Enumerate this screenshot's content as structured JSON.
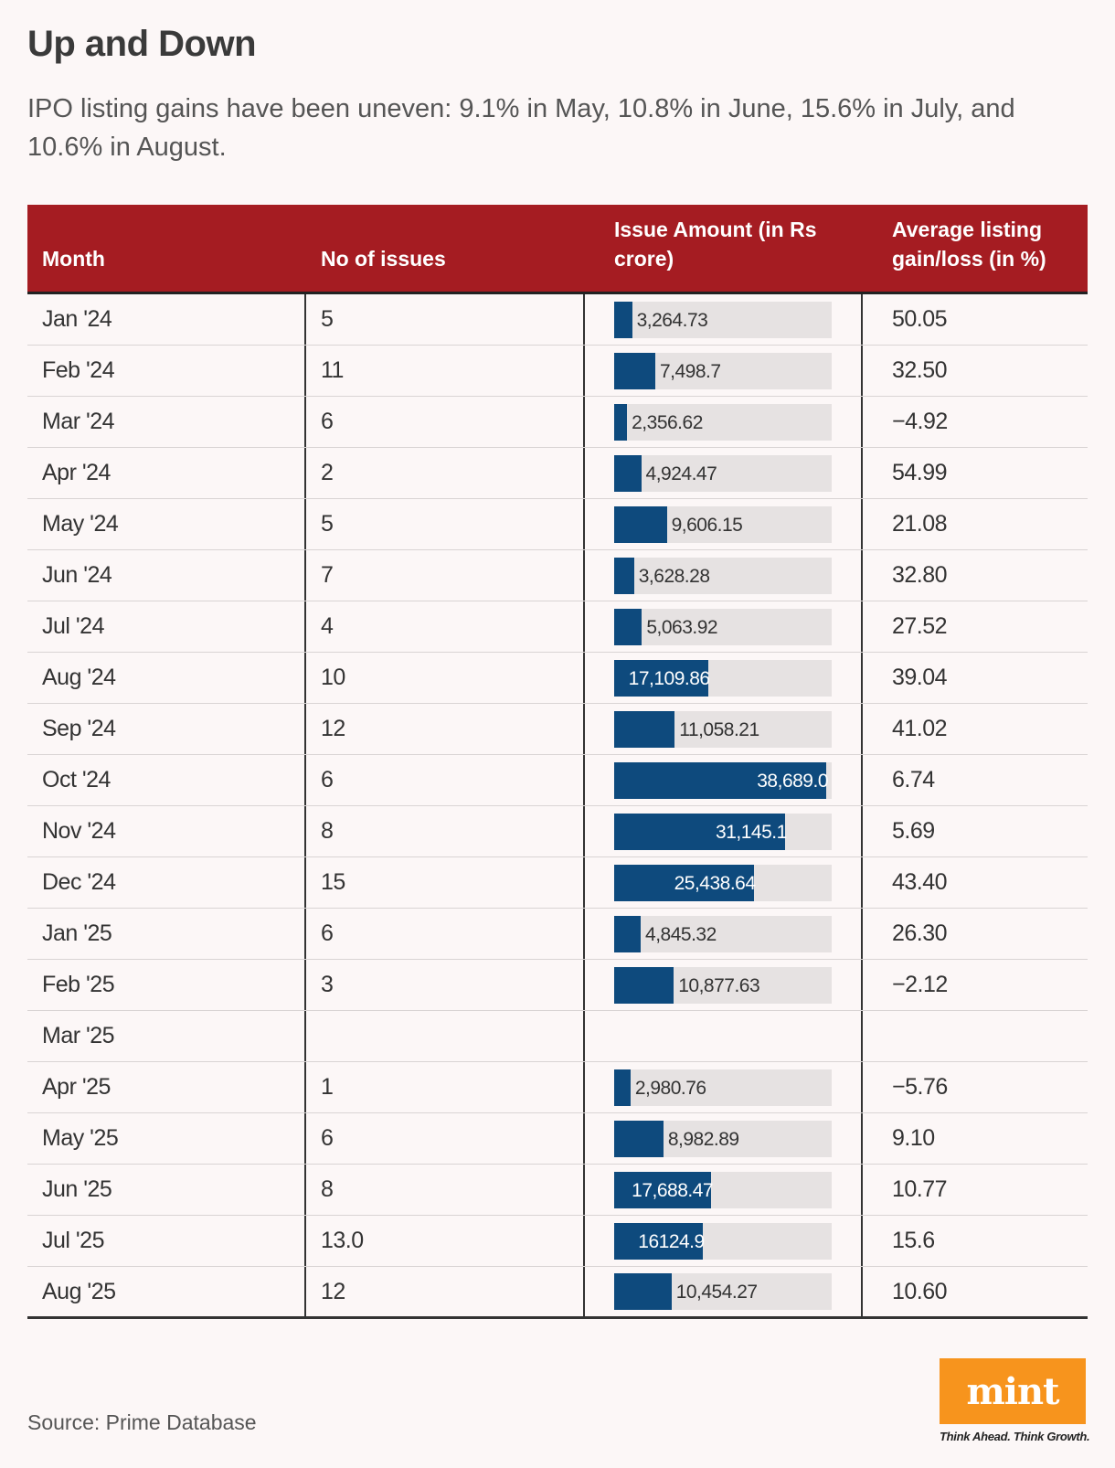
{
  "title": "Up and Down",
  "subtitle": "IPO listing gains have been uneven: 9.1% in May, 10.8% in June, 15.6% in July, and 10.6% in August.",
  "source": "Source: Prime Database",
  "logo": {
    "name": "mint",
    "tagline": "Think Ahead. Think Growth."
  },
  "colors": {
    "header_bg": "#a51c22",
    "bar": "#0e4a7d",
    "track": "#e6e2e2",
    "logo_bg": "#f7941d"
  },
  "chart_data": {
    "type": "table",
    "columns": [
      "Month",
      "No of issues",
      "Issue Amount (in Rs crore)",
      "Average listing gain/loss (in %)"
    ],
    "bar_max": 38689.0,
    "rows": [
      {
        "month": "Jan '24",
        "issues": "5",
        "amount": 3264.73,
        "amount_label": "3,264.73",
        "gain": "50.05"
      },
      {
        "month": "Feb '24",
        "issues": "11",
        "amount": 7498.7,
        "amount_label": "7,498.7",
        "gain": "32.50"
      },
      {
        "month": "Mar '24",
        "issues": "6",
        "amount": 2356.62,
        "amount_label": "2,356.62",
        "gain": "−4.92"
      },
      {
        "month": "Apr '24",
        "issues": "2",
        "amount": 4924.47,
        "amount_label": "4,924.47",
        "gain": "54.99"
      },
      {
        "month": "May '24",
        "issues": "5",
        "amount": 9606.15,
        "amount_label": "9,606.15",
        "gain": "21.08"
      },
      {
        "month": "Jun '24",
        "issues": "7",
        "amount": 3628.28,
        "amount_label": "3,628.28",
        "gain": "32.80"
      },
      {
        "month": "Jul '24",
        "issues": "4",
        "amount": 5063.92,
        "amount_label": "5,063.92",
        "gain": "27.52"
      },
      {
        "month": "Aug '24",
        "issues": "10",
        "amount": 17109.86,
        "amount_label": "17,109.86",
        "gain": "39.04"
      },
      {
        "month": "Sep '24",
        "issues": "12",
        "amount": 11058.21,
        "amount_label": "11,058.21",
        "gain": "41.02"
      },
      {
        "month": "Oct '24",
        "issues": "6",
        "amount": 38689.0,
        "amount_label": "38,689.0",
        "gain": "6.74"
      },
      {
        "month": "Nov '24",
        "issues": "8",
        "amount": 31145.1,
        "amount_label": "31,145.1",
        "gain": "5.69"
      },
      {
        "month": "Dec '24",
        "issues": "15",
        "amount": 25438.64,
        "amount_label": "25,438.64",
        "gain": "43.40"
      },
      {
        "month": "Jan '25",
        "issues": "6",
        "amount": 4845.32,
        "amount_label": "4,845.32",
        "gain": "26.30"
      },
      {
        "month": "Feb '25",
        "issues": "3",
        "amount": 10877.63,
        "amount_label": "10,877.63",
        "gain": "−2.12"
      },
      {
        "month": "Mar '25",
        "issues": "",
        "amount": null,
        "amount_label": "",
        "gain": ""
      },
      {
        "month": "Apr '25",
        "issues": "1",
        "amount": 2980.76,
        "amount_label": "2,980.76",
        "gain": "−5.76"
      },
      {
        "month": "May '25",
        "issues": "6",
        "amount": 8982.89,
        "amount_label": "8,982.89",
        "gain": "9.10"
      },
      {
        "month": "Jun '25",
        "issues": "8",
        "amount": 17688.47,
        "amount_label": "17,688.47",
        "gain": "10.77"
      },
      {
        "month": "Jul '25",
        "issues": "13.0",
        "amount": 16124.9,
        "amount_label": "16124.9",
        "gain": "15.6"
      },
      {
        "month": "Aug '25",
        "issues": "12",
        "amount": 10454.27,
        "amount_label": "10,454.27",
        "gain": "10.60"
      }
    ]
  }
}
